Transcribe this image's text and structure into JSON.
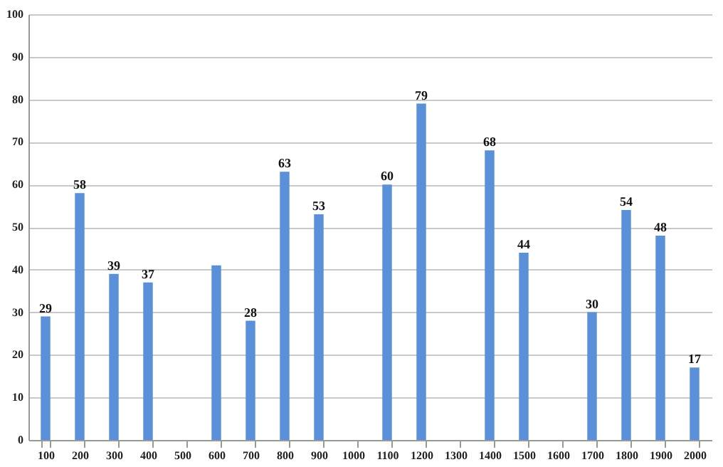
{
  "chart_data": {
    "type": "bar",
    "categories": [
      "100",
      "200",
      "300",
      "400",
      "500",
      "600",
      "700",
      "800",
      "900",
      "1000",
      "1100",
      "1200",
      "1300",
      "1400",
      "1500",
      "1600",
      "1700",
      "1800",
      "1900",
      "2000"
    ],
    "values": [
      29,
      58,
      39,
      37,
      null,
      41,
      28,
      63,
      53,
      null,
      60,
      79,
      null,
      68,
      44,
      null,
      30,
      54,
      48,
      17
    ],
    "value_labels": [
      "29",
      "58",
      "39",
      "37",
      null,
      null,
      "28",
      "63",
      "53",
      null,
      "60",
      "79",
      null,
      "68",
      "44",
      null,
      "30",
      "54",
      "48",
      "17"
    ],
    "color": "#5b8fd6",
    "ylim": [
      0,
      100
    ],
    "yticks": [
      0,
      10,
      20,
      30,
      40,
      50,
      60,
      70,
      80,
      90,
      100
    ],
    "grid": "y"
  }
}
